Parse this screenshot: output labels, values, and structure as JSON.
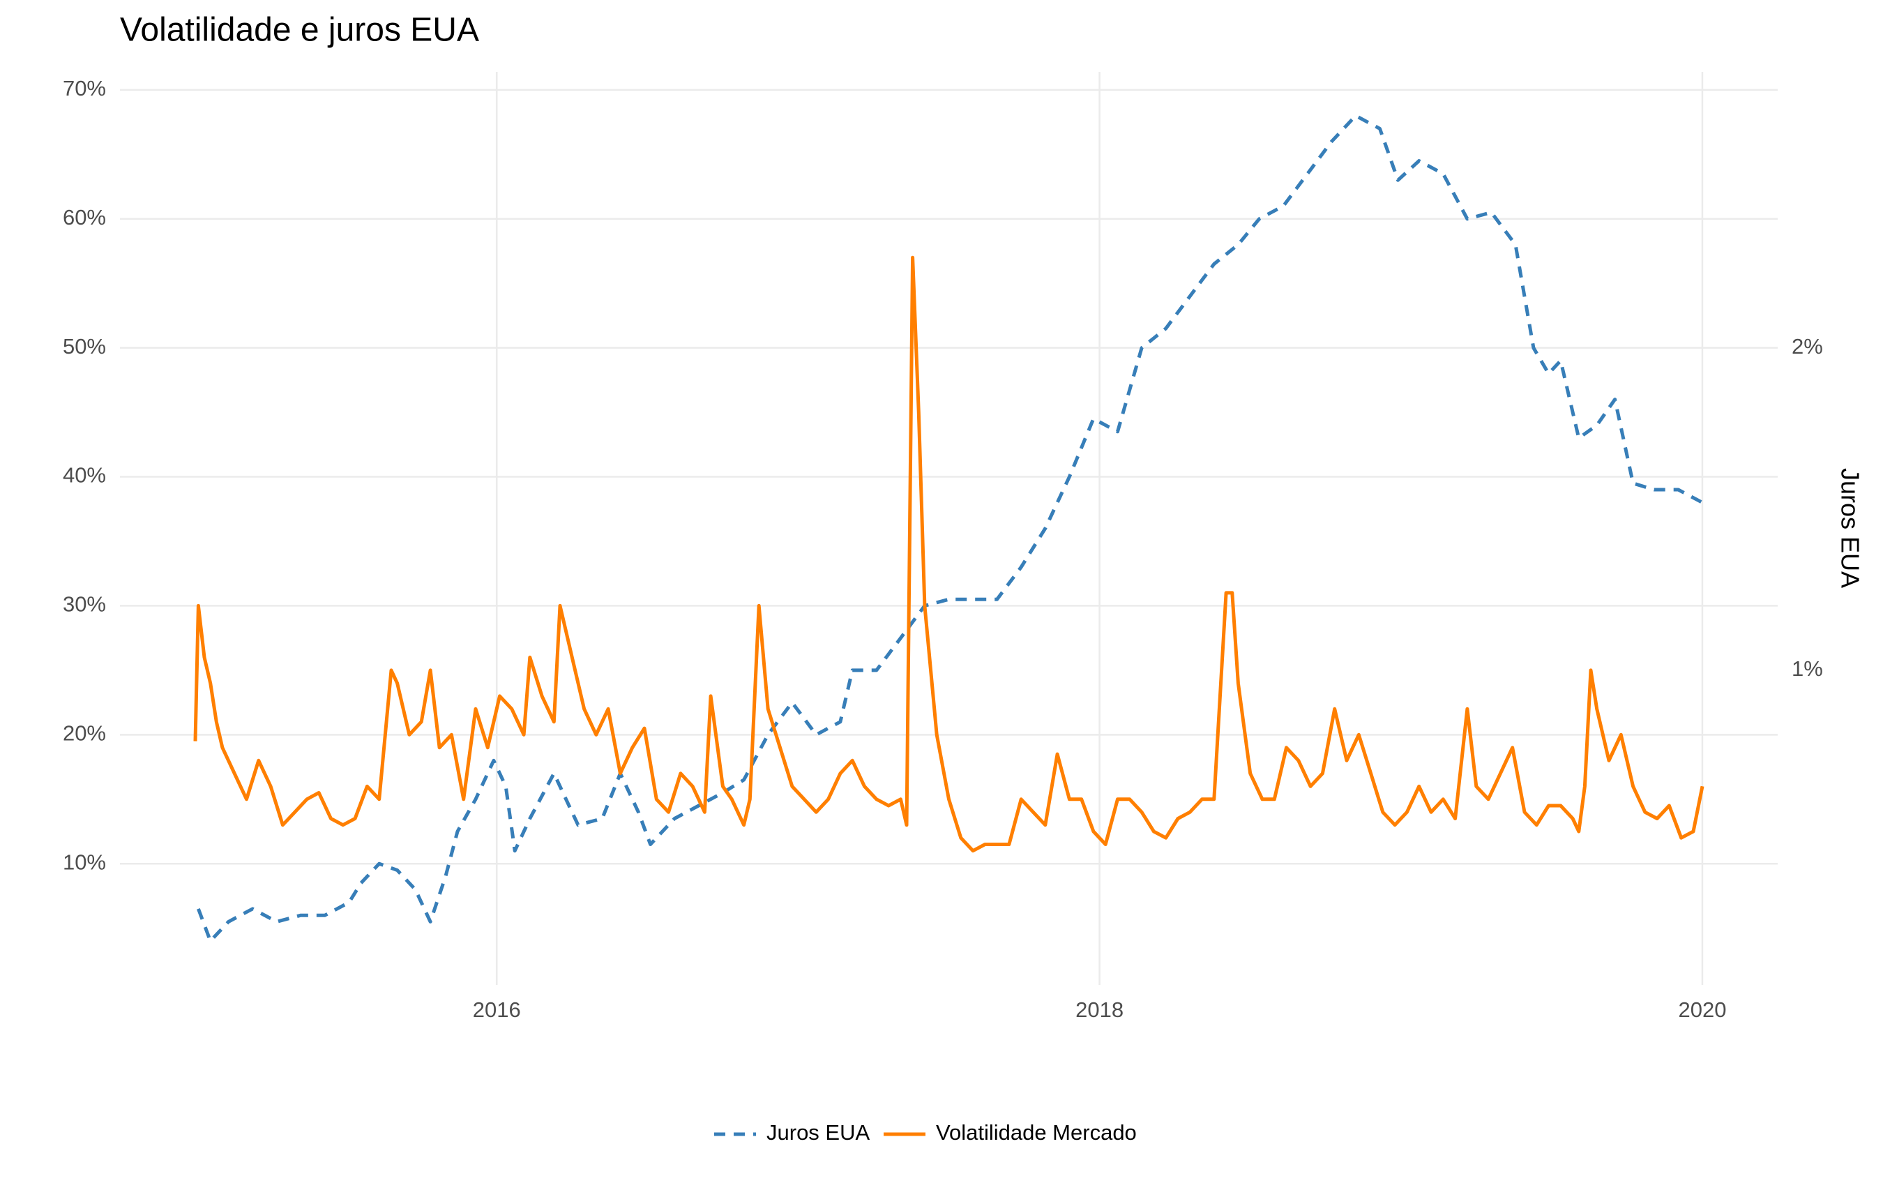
{
  "chart_data": {
    "type": "line",
    "title": "Volatilidade e juros EUA",
    "y2label": "Juros EUA",
    "xlim": [
      2014.75,
      2020.25
    ],
    "xticks": [
      2016,
      2018,
      2020
    ],
    "ylim": [
      0.6,
      71.4
    ],
    "yticks": [
      {
        "value": 10,
        "label": "10%"
      },
      {
        "value": 20,
        "label": "20%"
      },
      {
        "value": 30,
        "label": "30%"
      },
      {
        "value": 40,
        "label": "40%"
      },
      {
        "value": 50,
        "label": "50%"
      },
      {
        "value": 60,
        "label": "60%"
      },
      {
        "value": 70,
        "label": "70%"
      }
    ],
    "y2lim": [
      0.024,
      2.856
    ],
    "y2ticks": [
      {
        "value": 1,
        "label": "1%"
      },
      {
        "value": 2,
        "label": "2%"
      }
    ],
    "grid": true,
    "legend": "bottom",
    "series": [
      {
        "name": "Juros EUA",
        "color": "#377eb8",
        "dashed": true,
        "axis": "y2",
        "x": [
          2015.01,
          2015.05,
          2015.11,
          2015.19,
          2015.27,
          2015.35,
          2015.43,
          2015.51,
          2015.55,
          2015.61,
          2015.67,
          2015.73,
          2015.78,
          2015.83,
          2015.87,
          2015.93,
          2015.99,
          2016.03,
          2016.06,
          2016.11,
          2016.19,
          2016.23,
          2016.27,
          2016.35,
          2016.41,
          2016.47,
          2016.51,
          2016.59,
          2016.67,
          2016.75,
          2016.82,
          2016.9,
          2016.98,
          2017.06,
          2017.14,
          2017.18,
          2017.26,
          2017.34,
          2017.42,
          2017.5,
          2017.58,
          2017.66,
          2017.74,
          2017.82,
          2017.9,
          2017.98,
          2018.06,
          2018.14,
          2018.22,
          2018.3,
          2018.38,
          2018.46,
          2018.53,
          2018.61,
          2018.69,
          2018.77,
          2018.85,
          2018.93,
          2018.99,
          2019.06,
          2019.14,
          2019.22,
          2019.3,
          2019.38,
          2019.44,
          2019.49,
          2019.53,
          2019.59,
          2019.65,
          2019.71,
          2019.77,
          2019.84,
          2019.92,
          2020.0
        ],
        "values": [
          0.26,
          0.16,
          0.22,
          0.26,
          0.22,
          0.24,
          0.24,
          0.28,
          0.34,
          0.4,
          0.38,
          0.32,
          0.22,
          0.36,
          0.5,
          0.6,
          0.72,
          0.64,
          0.44,
          0.54,
          0.68,
          0.6,
          0.52,
          0.54,
          0.68,
          0.56,
          0.46,
          0.54,
          0.58,
          0.62,
          0.66,
          0.8,
          0.9,
          0.8,
          0.84,
          1.0,
          1.0,
          1.1,
          1.2,
          1.22,
          1.22,
          1.22,
          1.32,
          1.44,
          1.6,
          1.78,
          1.74,
          2.0,
          2.06,
          2.16,
          2.26,
          2.32,
          2.4,
          2.44,
          2.54,
          2.64,
          2.72,
          2.68,
          2.52,
          2.58,
          2.54,
          2.4,
          2.42,
          2.32,
          2.0,
          1.92,
          1.96,
          1.72,
          1.76,
          1.84,
          1.58,
          1.56,
          1.56,
          1.52
        ]
      },
      {
        "name": "Volatilidade Mercado",
        "color": "#ff7f00",
        "dashed": false,
        "x": [
          2015.0,
          2015.01,
          2015.03,
          2015.05,
          2015.07,
          2015.09,
          2015.13,
          2015.17,
          2015.21,
          2015.25,
          2015.29,
          2015.33,
          2015.37,
          2015.41,
          2015.45,
          2015.49,
          2015.53,
          2015.57,
          2015.61,
          2015.65,
          2015.67,
          2015.71,
          2015.75,
          2015.78,
          2015.81,
          2015.85,
          2015.89,
          2015.93,
          2015.97,
          2016.01,
          2016.05,
          2016.09,
          2016.11,
          2016.15,
          2016.19,
          2016.21,
          2016.25,
          2016.29,
          2016.33,
          2016.37,
          2016.41,
          2016.45,
          2016.49,
          2016.53,
          2016.57,
          2016.61,
          2016.65,
          2016.69,
          2016.71,
          2016.75,
          2016.78,
          2016.82,
          2016.84,
          2016.87,
          2016.9,
          2016.94,
          2016.98,
          2017.02,
          2017.06,
          2017.1,
          2017.14,
          2017.18,
          2017.22,
          2017.26,
          2017.3,
          2017.34,
          2017.36,
          2017.38,
          2017.4,
          2017.42,
          2017.46,
          2017.5,
          2017.54,
          2017.58,
          2017.62,
          2017.66,
          2017.7,
          2017.74,
          2017.78,
          2017.82,
          2017.86,
          2017.9,
          2017.94,
          2017.98,
          2018.02,
          2018.06,
          2018.1,
          2018.14,
          2018.18,
          2018.22,
          2018.26,
          2018.3,
          2018.34,
          2018.38,
          2018.42,
          2018.44,
          2018.46,
          2018.5,
          2018.54,
          2018.58,
          2018.62,
          2018.66,
          2018.7,
          2018.74,
          2018.78,
          2018.82,
          2018.86,
          2018.9,
          2018.94,
          2018.98,
          2019.02,
          2019.06,
          2019.1,
          2019.14,
          2019.18,
          2019.22,
          2019.25,
          2019.29,
          2019.33,
          2019.37,
          2019.41,
          2019.45,
          2019.49,
          2019.53,
          2019.57,
          2019.59,
          2019.61,
          2019.63,
          2019.65,
          2019.69,
          2019.73,
          2019.77,
          2019.81,
          2019.85,
          2019.89,
          2019.93,
          2019.97,
          2020.0
        ],
        "values": [
          19.5,
          30,
          26,
          24,
          21,
          19,
          17,
          15,
          18,
          16,
          13,
          14,
          15,
          15.5,
          13.5,
          13,
          13.5,
          16,
          15,
          25,
          24,
          20,
          21,
          25,
          19,
          20,
          15,
          22,
          19,
          23,
          22,
          20,
          26,
          23,
          21,
          30,
          26,
          22,
          20,
          22,
          17,
          19,
          20.5,
          15,
          14,
          17,
          16,
          14,
          23,
          16,
          15,
          13,
          15,
          30,
          22,
          19,
          16,
          15,
          14,
          15,
          17,
          18,
          16,
          15,
          14.5,
          15,
          13,
          57,
          45,
          30,
          20,
          15,
          12,
          11,
          11.5,
          11.5,
          11.5,
          15,
          14,
          13,
          18.5,
          15,
          15,
          12.5,
          11.5,
          15,
          15,
          14,
          12.5,
          12,
          13.5,
          14,
          15,
          15,
          31,
          31,
          24,
          17,
          15,
          15,
          19,
          18,
          16,
          17,
          22,
          18,
          20,
          17,
          14,
          13,
          14,
          16,
          14,
          15,
          13.5,
          22,
          16,
          15,
          17,
          19,
          14,
          13,
          14.5,
          14.5,
          13.5,
          12.5,
          16,
          25,
          22,
          18,
          20,
          16,
          14,
          13.5,
          14.5,
          12,
          12.5,
          16
        ]
      }
    ]
  }
}
